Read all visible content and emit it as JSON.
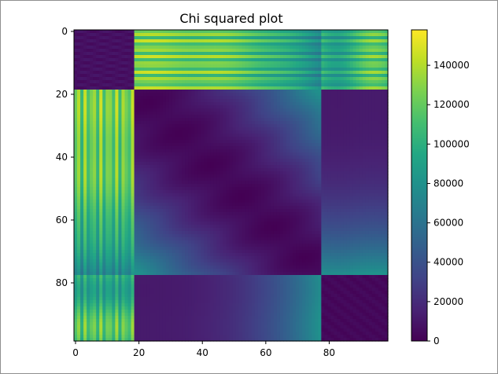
{
  "chart_data": {
    "type": "heatmap",
    "title": "Chi squared plot",
    "xlabel": "",
    "ylabel": "",
    "n": 99,
    "x_ticks": [
      "0",
      "20",
      "40",
      "60",
      "80"
    ],
    "y_ticks": [
      "0",
      "20",
      "40",
      "60",
      "80"
    ],
    "colorbar": {
      "colormap": "viridis",
      "min": 0,
      "max": 158000,
      "ticks": [
        0,
        20000,
        40000,
        60000,
        80000,
        100000,
        120000,
        140000
      ],
      "tick_labels": [
        "0",
        "20000",
        "40000",
        "60000",
        "80000",
        "100000",
        "120000",
        "140000"
      ]
    },
    "clusters": [
      {
        "start": 0,
        "end": 19
      },
      {
        "start": 19,
        "end": 78
      },
      {
        "start": 78,
        "end": 99
      }
    ],
    "value_estimates": {
      "within_cluster_a": 10000,
      "within_cluster_b_min": 0,
      "within_cluster_b_max": 80000,
      "within_cluster_c": 5000,
      "a_vs_b_max": 158000,
      "a_vs_c_max": 158000,
      "b_vs_c_max": 80000
    }
  }
}
